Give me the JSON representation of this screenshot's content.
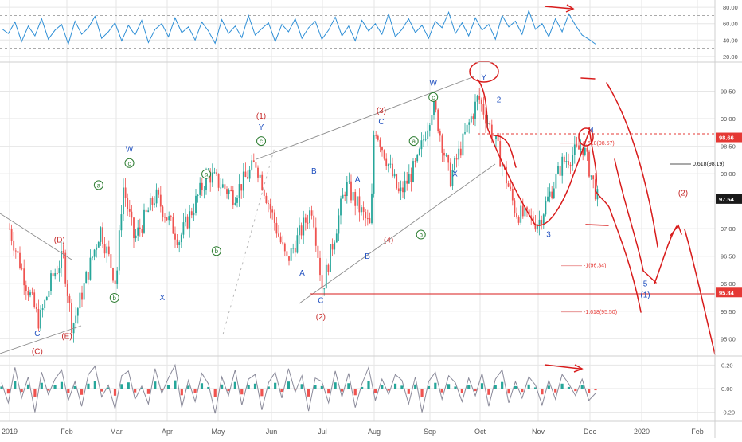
{
  "colors": {
    "rsi": "#2f8fd6",
    "up": "#26a69a",
    "down": "#ef5350",
    "annotation": "#d81b1b",
    "wave_blue": "#1f4fbf",
    "wave_green": "#2e7d32",
    "wave_red": "#c62828",
    "macd": "#8a8a9a",
    "grid": "#e6e6e6",
    "axis_text": "#555555"
  },
  "chart_data": [
    {
      "type": "line",
      "panel": "rsi",
      "y_ticks": [
        "80.00",
        "60.00",
        "40.00",
        "20.00"
      ],
      "ylim": [
        15,
        85
      ],
      "overbought": 70,
      "oversold": 30,
      "values": [
        54,
        48,
        62,
        38,
        57,
        45,
        66,
        41,
        52,
        59,
        35,
        63,
        47,
        55,
        69,
        42,
        50,
        61,
        39,
        58,
        46,
        64,
        37,
        53,
        60,
        44,
        67,
        49,
        56,
        40,
        62,
        51,
        36,
        65,
        48,
        57,
        43,
        70,
        46,
        54,
        61,
        38,
        59,
        50,
        66,
        42,
        55,
        63,
        41,
        52,
        68,
        45,
        57,
        39,
        64,
        51,
        60,
        47,
        72,
        44,
        53,
        66,
        49,
        58,
        42,
        63,
        55,
        74,
        48,
        61,
        45,
        67,
        52,
        59,
        41,
        70,
        56,
        63,
        47,
        76,
        53,
        60,
        44,
        66,
        50,
        72,
        58,
        46,
        41,
        35
      ]
    },
    {
      "type": "candlestick",
      "panel": "price",
      "x_ticks": [
        "2019",
        "Feb",
        "Mar",
        "Apr",
        "May",
        "Jun",
        "Jul",
        "Aug",
        "Sep",
        "Oct",
        "Nov",
        "Dec",
        "2020",
        "Feb"
      ],
      "y_ticks": [
        "99.50",
        "99.00",
        "98.50",
        "98.00",
        "97.50",
        "97.00",
        "96.50",
        "96.00",
        "95.50",
        "95.00"
      ],
      "ylim": [
        94.7,
        100.0
      ],
      "price_labels": [
        {
          "value": 98.66,
          "text": "98.66",
          "color": "#e53935"
        },
        {
          "value": 97.54,
          "text": "97.54",
          "color": "#1a1a1a"
        },
        {
          "value": 95.84,
          "text": "95.84",
          "color": "#e53935"
        }
      ],
      "fib_levels": [
        {
          "value": 98.57,
          "text": "0.618(98.57)"
        },
        {
          "value": 98.19,
          "text": "0.618(98.19)"
        },
        {
          "value": 96.34,
          "text": "-1(96.34)"
        },
        {
          "value": 95.5,
          "text": "-1.618(95.50)"
        }
      ],
      "close_path": [
        {
          "x": "2019-01-01",
          "y": 97.0
        },
        {
          "x": "2019-01-10",
          "y": 96.0
        },
        {
          "x": "2019-01-17",
          "y": 95.3
        },
        {
          "x": "2019-01-24",
          "y": 96.1
        },
        {
          "x": "2019-01-30",
          "y": 96.5
        },
        {
          "x": "2019-02-04",
          "y": 95.2
        },
        {
          "x": "2019-02-20",
          "y": 97.0
        },
        {
          "x": "2019-03-01",
          "y": 96.0
        },
        {
          "x": "2019-03-05",
          "y": 97.8
        },
        {
          "x": "2019-03-12",
          "y": 96.8
        },
        {
          "x": "2019-03-25",
          "y": 97.6
        },
        {
          "x": "2019-04-08",
          "y": 96.8
        },
        {
          "x": "2019-04-25",
          "y": 98.0
        },
        {
          "x": "2019-05-10",
          "y": 97.6
        },
        {
          "x": "2019-05-23",
          "y": 98.2
        },
        {
          "x": "2019-06-10",
          "y": 96.4
        },
        {
          "x": "2019-06-25",
          "y": 97.4
        },
        {
          "x": "2019-07-01",
          "y": 95.9
        },
        {
          "x": "2019-07-15",
          "y": 97.8
        },
        {
          "x": "2019-07-30",
          "y": 97.0
        },
        {
          "x": "2019-08-01",
          "y": 98.9
        },
        {
          "x": "2019-08-15",
          "y": 97.6
        },
        {
          "x": "2019-08-25",
          "y": 98.2
        },
        {
          "x": "2019-09-03",
          "y": 99.3
        },
        {
          "x": "2019-09-13",
          "y": 97.9
        },
        {
          "x": "2019-09-30",
          "y": 99.4
        },
        {
          "x": "2019-10-10",
          "y": 98.5
        },
        {
          "x": "2019-10-20",
          "y": 97.3
        },
        {
          "x": "2019-11-01",
          "y": 97.1
        },
        {
          "x": "2019-11-15",
          "y": 98.2
        },
        {
          "x": "2019-11-27",
          "y": 98.5
        },
        {
          "x": "2019-12-06",
          "y": 97.5
        }
      ],
      "wave_labels": [
        {
          "text": "(D)",
          "x": "2019-01-28",
          "y": 96.75,
          "color": "wave_red"
        },
        {
          "text": "(E)",
          "x": "2019-02-01",
          "y": 95.0,
          "color": "wave_red"
        },
        {
          "text": "C",
          "x": "2019-01-16",
          "y": 95.05,
          "color": "wave_blue"
        },
        {
          "text": "(C)",
          "x": "2019-01-16",
          "y": 94.72,
          "color": "wave_red"
        },
        {
          "text": "a",
          "x": "2019-02-19",
          "y": 97.75,
          "color": "wave_green",
          "circle": true
        },
        {
          "text": "b",
          "x": "2019-02-28",
          "y": 95.7,
          "color": "wave_green",
          "circle": true
        },
        {
          "text": "W",
          "x": "2019-03-09",
          "y": 98.4,
          "color": "wave_blue"
        },
        {
          "text": "c",
          "x": "2019-03-09",
          "y": 98.15,
          "color": "wave_green",
          "circle": true
        },
        {
          "text": "X",
          "x": "2019-03-29",
          "y": 95.7,
          "color": "wave_blue"
        },
        {
          "text": "a",
          "x": "2019-04-24",
          "y": 97.95,
          "color": "wave_green",
          "circle": true
        },
        {
          "text": "b",
          "x": "2019-04-30",
          "y": 96.55,
          "color": "wave_green",
          "circle": true
        },
        {
          "text": "(1)",
          "x": "2019-05-26",
          "y": 99.0,
          "color": "wave_red"
        },
        {
          "text": "Y",
          "x": "2019-05-26",
          "y": 98.8,
          "color": "wave_blue"
        },
        {
          "text": "c",
          "x": "2019-05-26",
          "y": 98.55,
          "color": "wave_green",
          "circle": true
        },
        {
          "text": "A",
          "x": "2019-06-19",
          "y": 96.15,
          "color": "wave_blue"
        },
        {
          "text": "B",
          "x": "2019-06-26",
          "y": 98.0,
          "color": "wave_blue"
        },
        {
          "text": "C",
          "x": "2019-06-30",
          "y": 95.65,
          "color": "wave_blue"
        },
        {
          "text": "(2)",
          "x": "2019-06-30",
          "y": 95.35,
          "color": "wave_red"
        },
        {
          "text": "A",
          "x": "2019-07-22",
          "y": 97.85,
          "color": "wave_blue"
        },
        {
          "text": "B",
          "x": "2019-07-28",
          "y": 96.45,
          "color": "wave_blue"
        },
        {
          "text": "(3)",
          "x": "2019-08-05",
          "y": 99.1,
          "color": "wave_red"
        },
        {
          "text": "C",
          "x": "2019-08-05",
          "y": 98.9,
          "color": "wave_blue"
        },
        {
          "text": "(4)",
          "x": "2019-08-09",
          "y": 96.75,
          "color": "wave_red"
        },
        {
          "text": "a",
          "x": "2019-08-23",
          "y": 98.55,
          "color": "wave_green",
          "circle": true
        },
        {
          "text": "b",
          "x": "2019-08-27",
          "y": 96.85,
          "color": "wave_green",
          "circle": true
        },
        {
          "text": "W",
          "x": "2019-09-03",
          "y": 99.6,
          "color": "wave_blue"
        },
        {
          "text": "c",
          "x": "2019-09-03",
          "y": 99.35,
          "color": "wave_green",
          "circle": true
        },
        {
          "text": "X",
          "x": "2019-09-16",
          "y": 97.95,
          "color": "wave_blue"
        },
        {
          "text": "Y",
          "x": "2019-10-03",
          "y": 99.7,
          "color": "wave_blue"
        },
        {
          "text": "2",
          "x": "2019-10-11",
          "y": 99.3,
          "color": "wave_blue"
        },
        {
          "text": "3",
          "x": "2019-11-07",
          "y": 96.85,
          "color": "wave_blue"
        },
        {
          "text": "4",
          "x": "2019-12-02",
          "y": 98.75,
          "color": "wave_blue"
        },
        {
          "text": "5",
          "x": "2020-01-03",
          "y": 95.95,
          "color": "wave_blue"
        },
        {
          "text": "(1)",
          "x": "2020-01-03",
          "y": 95.75,
          "color": "wave_blue"
        },
        {
          "text": "(2)",
          "x": "2020-01-24",
          "y": 97.6,
          "color": "wave_red"
        }
      ]
    },
    {
      "type": "histogram",
      "panel": "macd",
      "y_ticks": [
        "0.20",
        "0.00",
        "-0.20"
      ],
      "ylim": [
        -0.27,
        0.27
      ],
      "values": [
        0.05,
        -0.12,
        0.18,
        -0.08,
        0.1,
        -0.2,
        0.14,
        -0.05,
        0.08,
        0.16,
        -0.1,
        0.06,
        -0.15,
        0.12,
        0.19,
        -0.07,
        0.03,
        -0.17,
        0.11,
        0.15,
        -0.09,
        0.02,
        -0.13,
        0.17,
        -0.04,
        0.09,
        0.2,
        -0.16,
        0.07,
        -0.11,
        0.13,
        0.04,
        -0.21,
        0.1,
        -0.06,
        0.16,
        -0.14,
        0.08,
        0.12,
        -0.18,
        0.05,
        0.14,
        -0.08,
        0.17,
        -0.03,
        0.11,
        -0.19,
        0.09,
        0.06,
        -0.12,
        0.15,
        -0.07,
        0.13,
        -0.16,
        0.04,
        0.18,
        -0.1,
        0.08,
        -0.05,
        0.12,
        0.07,
        -0.13,
        0.1,
        -0.2,
        0.06,
        0.14,
        -0.09,
        0.11,
        0.05,
        -0.11,
        0.09,
        -0.06,
        0.13,
        -0.15,
        0.08,
        0.16,
        -0.12,
        0.06,
        -0.08,
        0.1,
        0.03,
        -0.14,
        0.07,
        -0.09,
        0.12,
        0.04,
        -0.06,
        0.08,
        -0.1,
        -0.04
      ]
    }
  ]
}
